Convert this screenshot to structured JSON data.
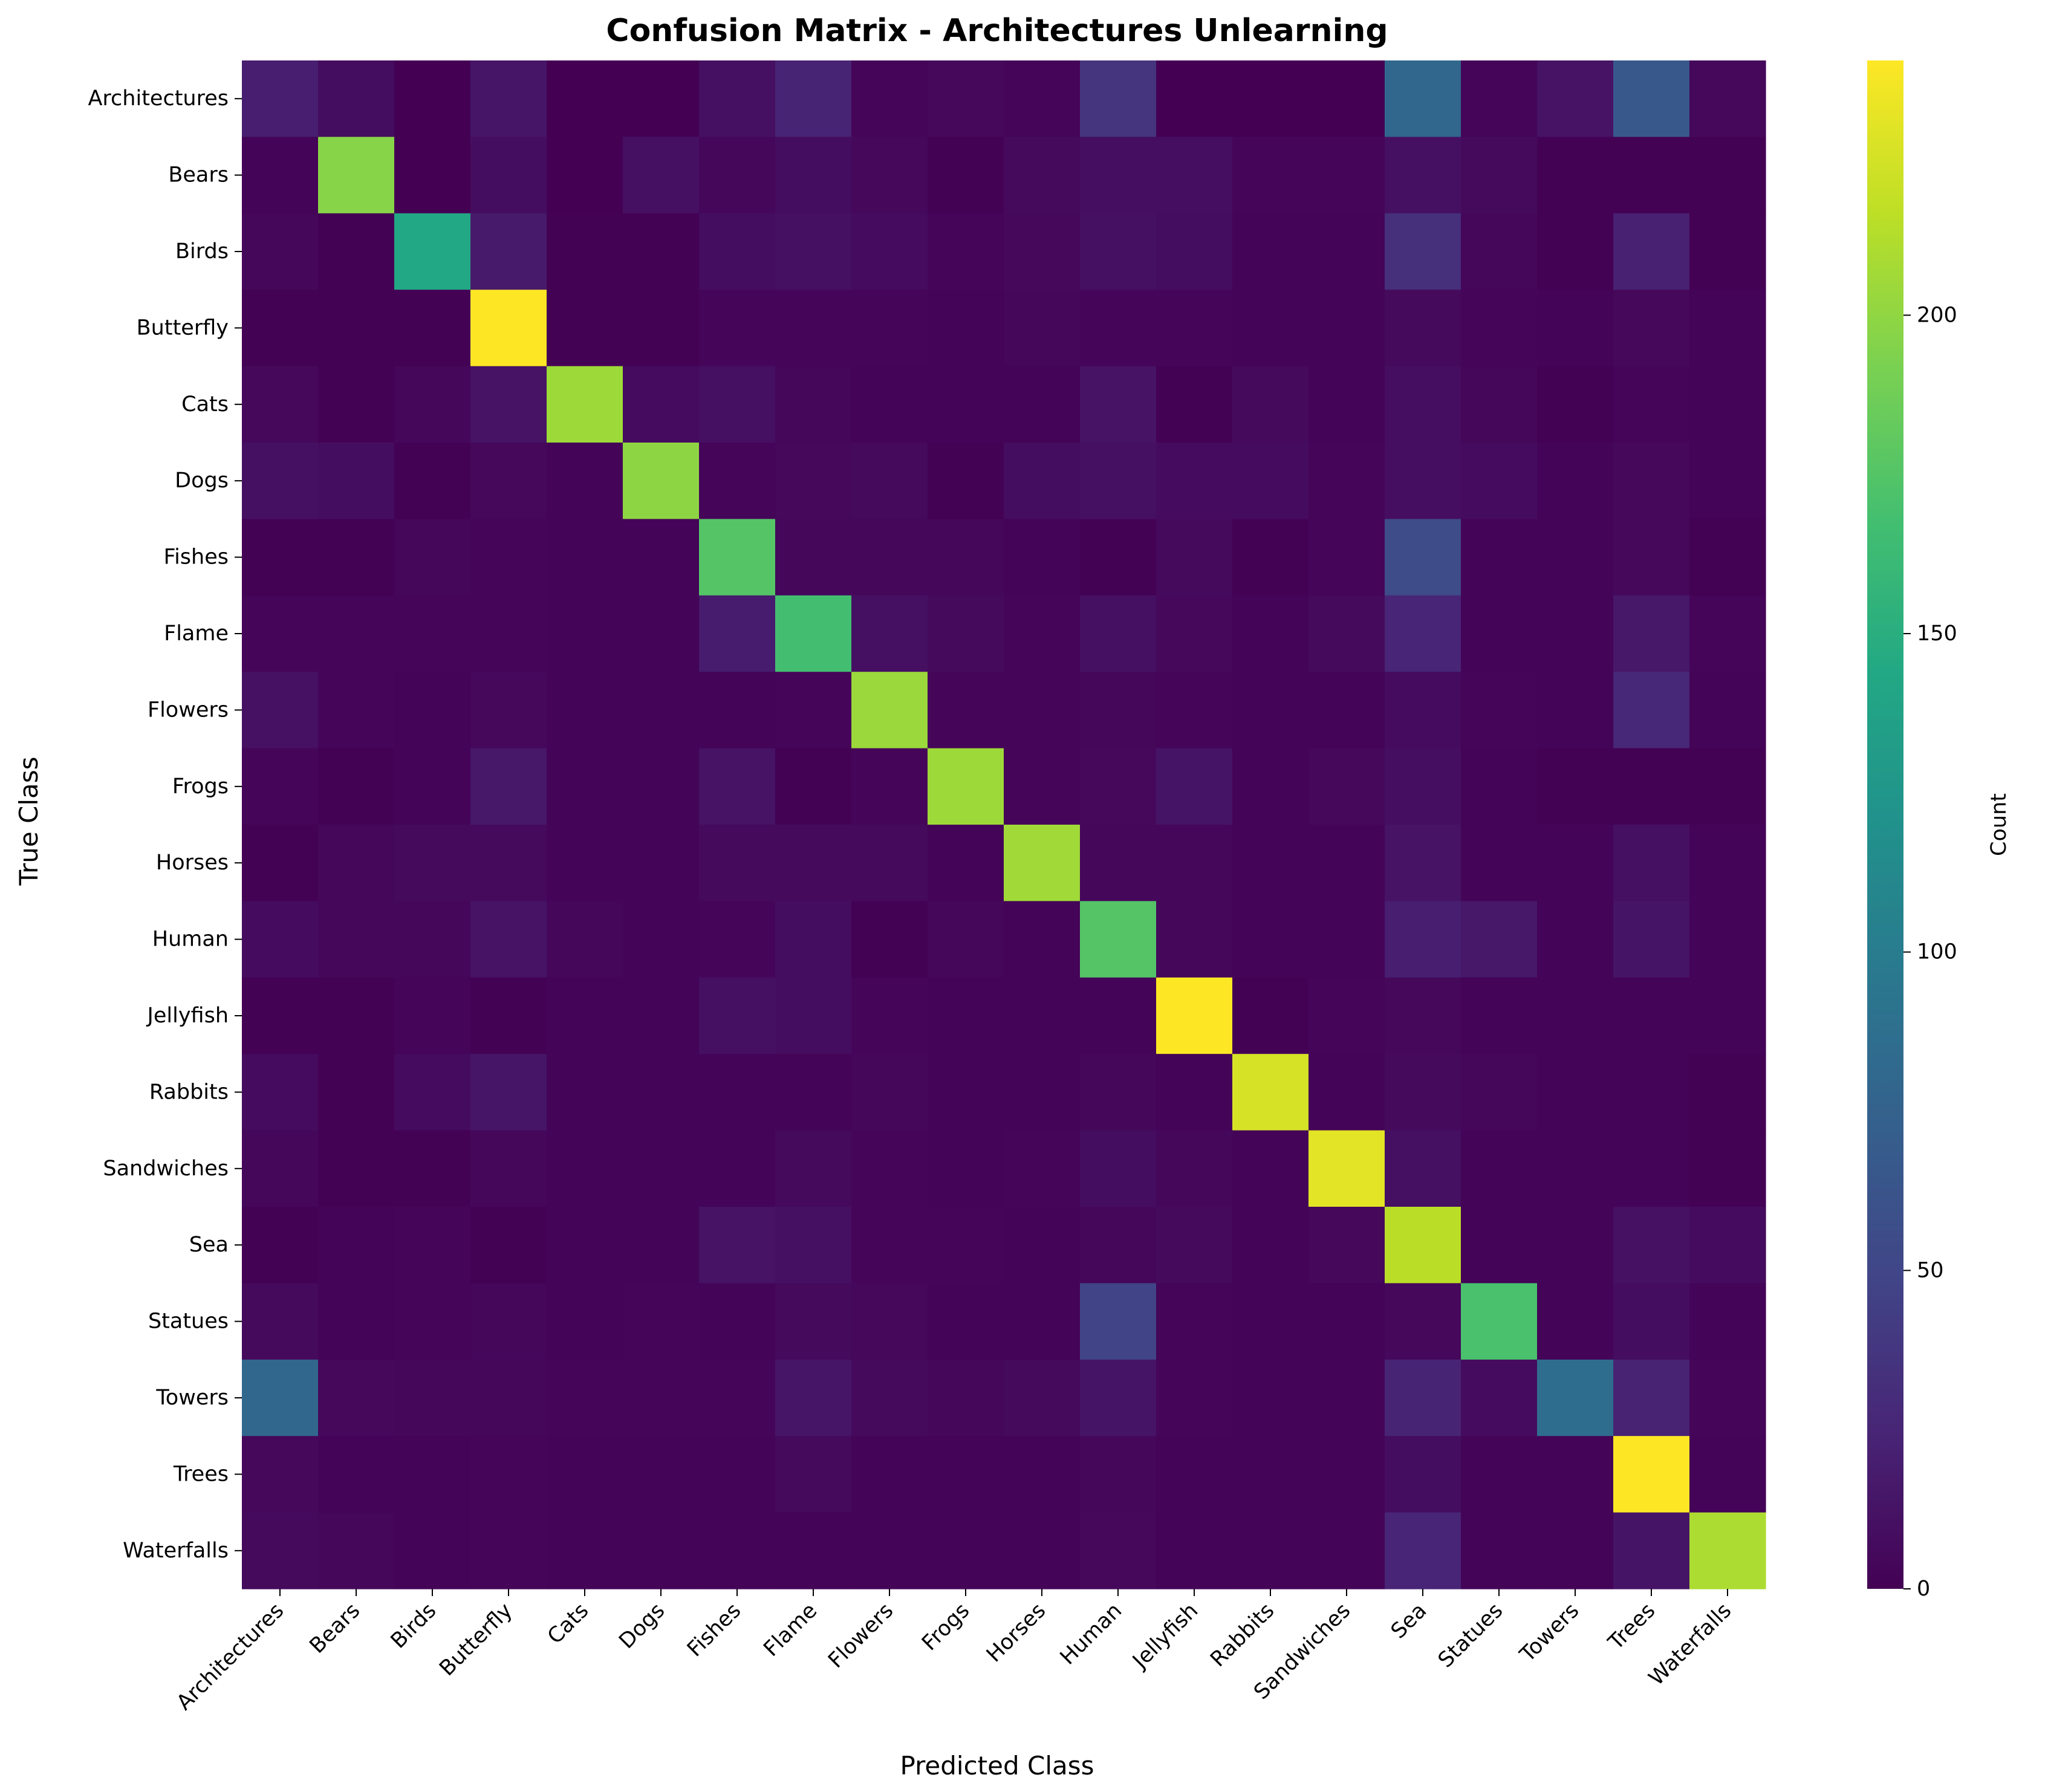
{
  "chart_data": {
    "type": "heatmap",
    "title": "Confusion Matrix - Architectures Unlearning",
    "xlabel": "Predicted Class",
    "ylabel": "True Class",
    "colorbar_label": "Count",
    "colormap": "viridis",
    "vmin": 0,
    "vmax": 240,
    "colorbar_ticks": [
      0,
      50,
      100,
      150,
      200
    ],
    "labels": [
      "Architectures",
      "Bears",
      "Birds",
      "Butterfly",
      "Cats",
      "Dogs",
      "Fishes",
      "Flame",
      "Flowers",
      "Frogs",
      "Horses",
      "Human",
      "Jellyfish",
      "Rabbits",
      "Sandwiches",
      "Sea",
      "Statues",
      "Towers",
      "Trees",
      "Waterfalls"
    ],
    "matrix": [
      [
        20,
        8,
        0,
        14,
        0,
        0,
        10,
        24,
        3,
        5,
        3,
        36,
        0,
        0,
        0,
        80,
        3,
        12,
        66,
        5
      ],
      [
        2,
        197,
        0,
        8,
        0,
        10,
        4,
        8,
        5,
        1,
        6,
        9,
        9,
        3,
        3,
        10,
        6,
        1,
        1,
        1
      ],
      [
        4,
        1,
        144,
        17,
        1,
        1,
        8,
        10,
        7,
        3,
        5,
        10,
        8,
        2,
        2,
        32,
        4,
        1,
        22,
        1
      ],
      [
        1,
        1,
        1,
        240,
        1,
        1,
        3,
        3,
        3,
        2,
        4,
        3,
        3,
        2,
        2,
        6,
        3,
        2,
        5,
        2
      ],
      [
        5,
        1,
        4,
        12,
        205,
        7,
        10,
        4,
        2,
        2,
        2,
        12,
        1,
        6,
        2,
        9,
        4,
        1,
        3,
        2
      ],
      [
        10,
        8,
        1,
        5,
        2,
        199,
        3,
        5,
        6,
        1,
        8,
        10,
        7,
        7,
        3,
        9,
        7,
        2,
        5,
        2
      ],
      [
        1,
        1,
        4,
        3,
        2,
        2,
        175,
        4,
        4,
        4,
        2,
        1,
        6,
        1,
        3,
        55,
        2,
        2,
        5,
        1
      ],
      [
        3,
        3,
        3,
        3,
        2,
        2,
        18,
        167,
        10,
        6,
        3,
        10,
        5,
        2,
        6,
        25,
        2,
        2,
        16,
        3
      ],
      [
        11,
        3,
        2,
        5,
        2,
        2,
        2,
        3,
        204,
        3,
        3,
        4,
        3,
        2,
        2,
        7,
        3,
        2,
        26,
        2
      ],
      [
        3,
        1,
        2,
        15,
        2,
        2,
        12,
        1,
        3,
        205,
        3,
        5,
        13,
        2,
        5,
        9,
        2,
        1,
        1,
        1
      ],
      [
        1,
        4,
        6,
        6,
        2,
        2,
        6,
        6,
        6,
        2,
        206,
        4,
        4,
        2,
        2,
        12,
        2,
        2,
        10,
        2
      ],
      [
        7,
        4,
        4,
        12,
        4,
        2,
        3,
        8,
        1,
        4,
        2,
        175,
        4,
        2,
        2,
        20,
        15,
        2,
        13,
        2
      ],
      [
        1,
        1,
        3,
        1,
        2,
        2,
        10,
        8,
        3,
        2,
        2,
        2,
        240,
        1,
        3,
        5,
        2,
        2,
        2,
        2
      ],
      [
        7,
        1,
        7,
        14,
        2,
        2,
        2,
        2,
        4,
        2,
        2,
        4,
        2,
        225,
        2,
        6,
        4,
        2,
        2,
        1
      ],
      [
        4,
        1,
        1,
        4,
        2,
        2,
        2,
        6,
        3,
        2,
        3,
        8,
        4,
        2,
        230,
        10,
        2,
        2,
        2,
        1
      ],
      [
        1,
        2,
        3,
        1,
        2,
        2,
        12,
        10,
        3,
        3,
        2,
        4,
        6,
        2,
        5,
        215,
        2,
        2,
        11,
        7
      ],
      [
        6,
        2,
        3,
        4,
        2,
        3,
        2,
        6,
        5,
        2,
        2,
        48,
        3,
        2,
        2,
        5,
        170,
        2,
        8,
        2
      ],
      [
        80,
        5,
        4,
        4,
        3,
        3,
        3,
        14,
        6,
        4,
        6,
        13,
        3,
        2,
        2,
        24,
        7,
        85,
        23,
        3
      ],
      [
        5,
        2,
        2,
        3,
        2,
        2,
        2,
        6,
        2,
        2,
        2,
        4,
        2,
        2,
        2,
        8,
        2,
        2,
        240,
        2
      ],
      [
        6,
        4,
        2,
        3,
        2,
        2,
        2,
        2,
        2,
        2,
        2,
        5,
        2,
        2,
        2,
        25,
        2,
        2,
        13,
        210
      ]
    ]
  }
}
